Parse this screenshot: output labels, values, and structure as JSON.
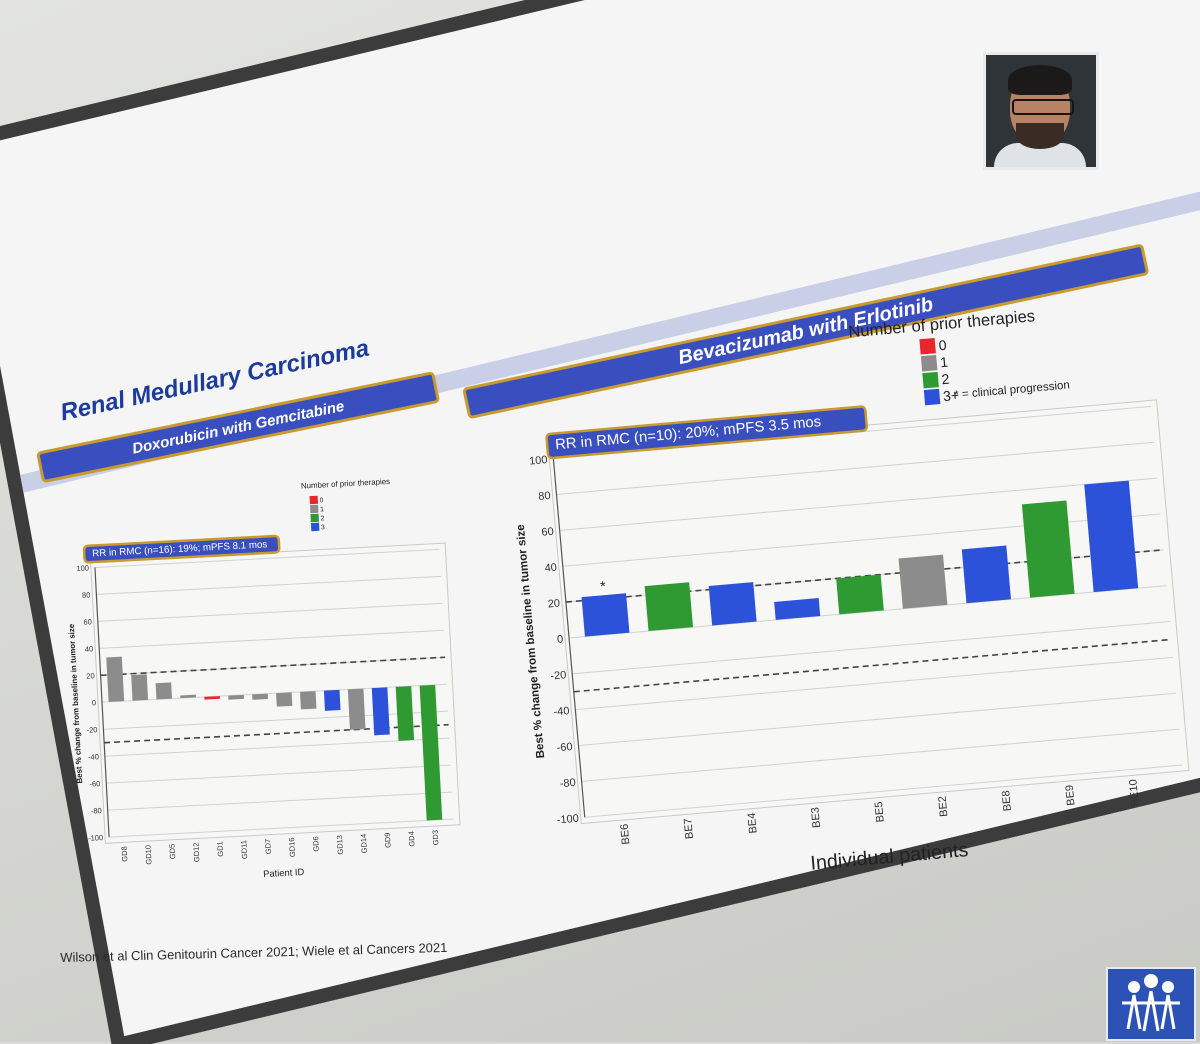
{
  "slide": {
    "title": "Renal Medullary Carcinoma",
    "citation": "Wilson et al Clin Genitourin Cancer 2021; Wiele et al Cancers 2021"
  },
  "colors": {
    "therapy_0": "#e8262c",
    "therapy_1": "#8c8c8c",
    "therapy_2": "#2f9a32",
    "therapy_3": "#2c52d9"
  },
  "chart_data": [
    {
      "type": "bar",
      "section_title": "Doxorubicin with Gemcitabine",
      "annotation": "RR in RMC (n=16): 19%; mPFS 8.1 mos",
      "legend_title": "Number of prior therapies",
      "legend": [
        {
          "label": "0",
          "color": "#e8262c"
        },
        {
          "label": "1",
          "color": "#8c8c8c"
        },
        {
          "label": "2",
          "color": "#2f9a32"
        },
        {
          "label": "3",
          "color": "#2c52d9"
        }
      ],
      "xlabel": "Patient ID",
      "ylabel": "Best % change from baseline in tumor size",
      "ylim": [
        -100,
        100
      ],
      "yticks": [
        "100",
        "80",
        "60",
        "40",
        "20",
        "0",
        "-20",
        "-40",
        "-60",
        "-80",
        "-100"
      ],
      "reference_lines": [
        20,
        -30
      ],
      "categories": [
        "GD8",
        "GD10",
        "GD5",
        "GD12",
        "GD1",
        "GD11",
        "GD7",
        "GD16",
        "GD6",
        "GD13",
        "GD14",
        "GD9",
        "GD4",
        "GD3"
      ],
      "values": [
        33,
        19,
        12,
        2,
        -2,
        -3,
        -4,
        -10,
        -13,
        -15,
        -30,
        -35,
        -40,
        -100
      ],
      "prior_therapies": [
        "1",
        "1",
        "1",
        "1",
        "0",
        "1",
        "1",
        "1",
        "1",
        "3",
        "1",
        "3",
        "2",
        "2"
      ]
    },
    {
      "type": "bar",
      "section_title": "Bevacizumab with Erlotinib",
      "annotation": "RR in RMC (n=10): 20%; mPFS 3.5 mos",
      "legend_title": "Number of prior therapies",
      "legend": [
        {
          "label": "0",
          "color": "#e8262c"
        },
        {
          "label": "1",
          "color": "#8c8c8c"
        },
        {
          "label": "2",
          "color": "#2f9a32"
        },
        {
          "label": "3+",
          "color": "#2c52d9"
        }
      ],
      "note": "* = clinical progression",
      "star_marker": "*",
      "xlabel": "Individual patients",
      "ylabel": "Best % change from baseline in tumor size",
      "ylim": [
        -100,
        100
      ],
      "yticks": [
        "100",
        "80",
        "60",
        "40",
        "20",
        "0",
        "-20",
        "-40",
        "-60",
        "-80",
        "-100"
      ],
      "reference_lines": [
        20,
        -30
      ],
      "categories": [
        "BE6",
        "BE7",
        "BE4",
        "BE3",
        "BE5",
        "BE2",
        "BE8",
        "BE9",
        "BE10"
      ],
      "values": [
        22,
        25,
        22,
        10,
        20,
        28,
        30,
        52,
        60
      ],
      "prior_therapies": [
        "3",
        "2",
        "3",
        "3",
        "2",
        "1",
        "3",
        "2",
        "3"
      ],
      "starred": [
        "BE6"
      ]
    }
  ]
}
